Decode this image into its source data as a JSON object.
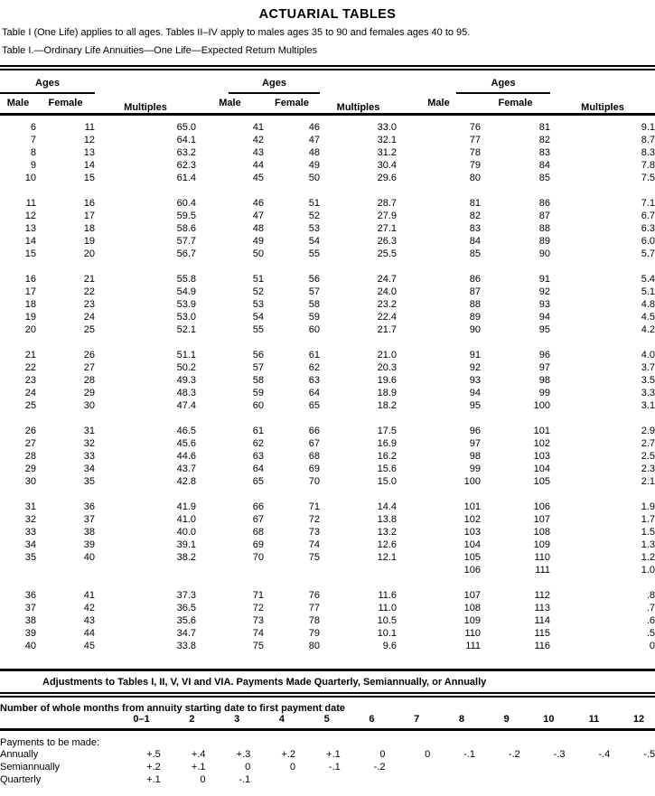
{
  "title": "ACTUARIAL TABLES",
  "intro": "Table I (One Life) applies to all ages. Tables II–IV apply to males ages 35 to 90 and females ages 40 to 95.",
  "table_caption": "Table I.—Ordinary Life Annuities—One Life—Expected Return Multiples",
  "main_table": {
    "group_header": "Ages",
    "male_header": "Male",
    "female_header": "Female",
    "multiples_header": "Multiples",
    "bands": [
      [
        [
          "6",
          "11",
          "65.0",
          "41",
          "46",
          "33.0",
          "76",
          "81",
          "9.1"
        ],
        [
          "7",
          "12",
          "64.1",
          "42",
          "47",
          "32.1",
          "77",
          "82",
          "8.7"
        ],
        [
          "8",
          "13",
          "63.2",
          "43",
          "48",
          "31.2",
          "78",
          "83",
          "8.3"
        ],
        [
          "9",
          "14",
          "62.3",
          "44",
          "49",
          "30.4",
          "79",
          "84",
          "7.8"
        ],
        [
          "10",
          "15",
          "61.4",
          "45",
          "50",
          "29.6",
          "80",
          "85",
          "7.5"
        ]
      ],
      [
        [
          "11",
          "16",
          "60.4",
          "46",
          "51",
          "28.7",
          "81",
          "86",
          "7.1"
        ],
        [
          "12",
          "17",
          "59.5",
          "47",
          "52",
          "27.9",
          "82",
          "87",
          "6.7"
        ],
        [
          "13",
          "18",
          "58.6",
          "48",
          "53",
          "27.1",
          "83",
          "88",
          "6.3"
        ],
        [
          "14",
          "19",
          "57.7",
          "49",
          "54",
          "26.3",
          "84",
          "89",
          "6.0"
        ],
        [
          "15",
          "20",
          "56.7",
          "50",
          "55",
          "25.5",
          "85",
          "90",
          "5.7"
        ]
      ],
      [
        [
          "16",
          "21",
          "55.8",
          "51",
          "56",
          "24.7",
          "86",
          "91",
          "5.4"
        ],
        [
          "17",
          "22",
          "54.9",
          "52",
          "57",
          "24.0",
          "87",
          "92",
          "5.1"
        ],
        [
          "18",
          "23",
          "53.9",
          "53",
          "58",
          "23.2",
          "88",
          "93",
          "4.8"
        ],
        [
          "19",
          "24",
          "53.0",
          "54",
          "59",
          "22.4",
          "89",
          "94",
          "4.5"
        ],
        [
          "20",
          "25",
          "52.1",
          "55",
          "60",
          "21.7",
          "90",
          "95",
          "4.2"
        ]
      ],
      [
        [
          "21",
          "26",
          "51.1",
          "56",
          "61",
          "21.0",
          "91",
          "96",
          "4.0"
        ],
        [
          "22",
          "27",
          "50.2",
          "57",
          "62",
          "20.3",
          "92",
          "97",
          "3.7"
        ],
        [
          "23",
          "28",
          "49.3",
          "58",
          "63",
          "19.6",
          "93",
          "98",
          "3.5"
        ],
        [
          "24",
          "29",
          "48.3",
          "59",
          "64",
          "18.9",
          "94",
          "99",
          "3.3"
        ],
        [
          "25",
          "30",
          "47.4",
          "60",
          "65",
          "18.2",
          "95",
          "100",
          "3.1"
        ]
      ],
      [
        [
          "26",
          "31",
          "46.5",
          "61",
          "66",
          "17.5",
          "96",
          "101",
          "2.9"
        ],
        [
          "27",
          "32",
          "45.6",
          "62",
          "67",
          "16.9",
          "97",
          "102",
          "2.7"
        ],
        [
          "28",
          "33",
          "44.6",
          "63",
          "68",
          "16.2",
          "98",
          "103",
          "2.5"
        ],
        [
          "29",
          "34",
          "43.7",
          "64",
          "69",
          "15.6",
          "99",
          "104",
          "2.3"
        ],
        [
          "30",
          "35",
          "42.8",
          "65",
          "70",
          "15.0",
          "100",
          "105",
          "2.1"
        ]
      ],
      [
        [
          "31",
          "36",
          "41.9",
          "66",
          "71",
          "14.4",
          "101",
          "106",
          "1.9"
        ],
        [
          "32",
          "37",
          "41.0",
          "67",
          "72",
          "13.8",
          "102",
          "107",
          "1.7"
        ],
        [
          "33",
          "38",
          "40.0",
          "68",
          "73",
          "13.2",
          "103",
          "108",
          "1.5"
        ],
        [
          "34",
          "39",
          "39.1",
          "69",
          "74",
          "12.6",
          "104",
          "109",
          "1.3"
        ],
        [
          "35",
          "40",
          "38.2",
          "70",
          "75",
          "12.1",
          "105",
          "110",
          "1.2"
        ],
        [
          "",
          "",
          "",
          "",
          "",
          "",
          "106",
          "111",
          "1.0"
        ]
      ],
      [
        [
          "36",
          "41",
          "37.3",
          "71",
          "76",
          "11.6",
          "107",
          "112",
          ".8"
        ],
        [
          "37",
          "42",
          "36.5",
          "72",
          "77",
          "11.0",
          "108",
          "113",
          ".7"
        ],
        [
          "38",
          "43",
          "35.6",
          "73",
          "78",
          "10.5",
          "109",
          "114",
          ".6"
        ],
        [
          "39",
          "44",
          "34.7",
          "74",
          "79",
          "10.1",
          "110",
          "115",
          ".5"
        ],
        [
          "40",
          "45",
          "33.8",
          "75",
          "80",
          "9.6",
          "111",
          "116",
          "0"
        ]
      ]
    ]
  },
  "adjustments": {
    "heading": "Adjustments to Tables I, II, V, VI and VIA. Payments Made Quarterly, Semiannually, or Annually",
    "months_heading": "Number of whole months from annuity starting date to first payment date",
    "month_cols": [
      "0–1",
      "2",
      "3",
      "4",
      "5",
      "6",
      "7",
      "8",
      "9",
      "10",
      "11",
      "12"
    ],
    "payments_label": "Payments to be made:",
    "rows": [
      {
        "label": "Annually",
        "values": [
          "+.5",
          "+.4",
          "+.3",
          "+.2",
          "+.1",
          "0",
          "0",
          "-.1",
          "-.2",
          "-.3",
          "-.4",
          "-.5"
        ]
      },
      {
        "label": "Semiannually",
        "values": [
          "+.2",
          "+.1",
          "0",
          "0",
          "-.1",
          "-.2",
          "",
          "",
          "",
          "",
          "",
          ""
        ]
      },
      {
        "label": "Quarterly",
        "values": [
          "+.1",
          "0",
          "-.1",
          "",
          "",
          "",
          "",
          "",
          "",
          "",
          "",
          ""
        ]
      }
    ]
  }
}
